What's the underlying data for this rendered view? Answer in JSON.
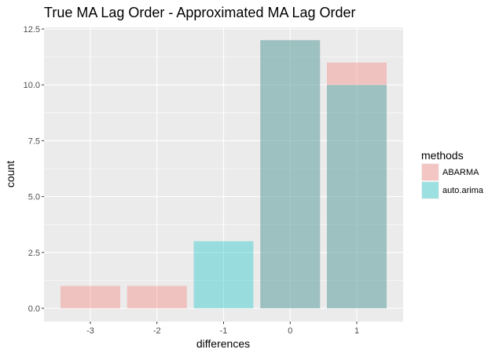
{
  "chart_data": {
    "type": "bar",
    "title": "True MA Lag Order - Approximated MA Lag Order",
    "xlabel": "differences",
    "ylabel": "count",
    "categories": [
      "-3",
      "-2",
      "-1",
      "0",
      "1"
    ],
    "ylim": [
      -0.6,
      12.5
    ],
    "yticks": [
      "0.0",
      "2.5",
      "5.0",
      "7.5",
      "10.0",
      "12.5"
    ],
    "ytick_values": [
      0,
      2.5,
      5,
      7.5,
      10,
      12.5
    ],
    "grid": true,
    "overlap": true,
    "legend": {
      "title": "methods",
      "placement": "right"
    },
    "series": [
      {
        "name": "ABARMA",
        "values": [
          1,
          1,
          0,
          12,
          11
        ],
        "color": "#f8766d",
        "alpha": 0.35
      },
      {
        "name": "auto.arima",
        "values": [
          0,
          0,
          3,
          12,
          10
        ],
        "color": "#00bfc4",
        "alpha": 0.35
      }
    ]
  }
}
